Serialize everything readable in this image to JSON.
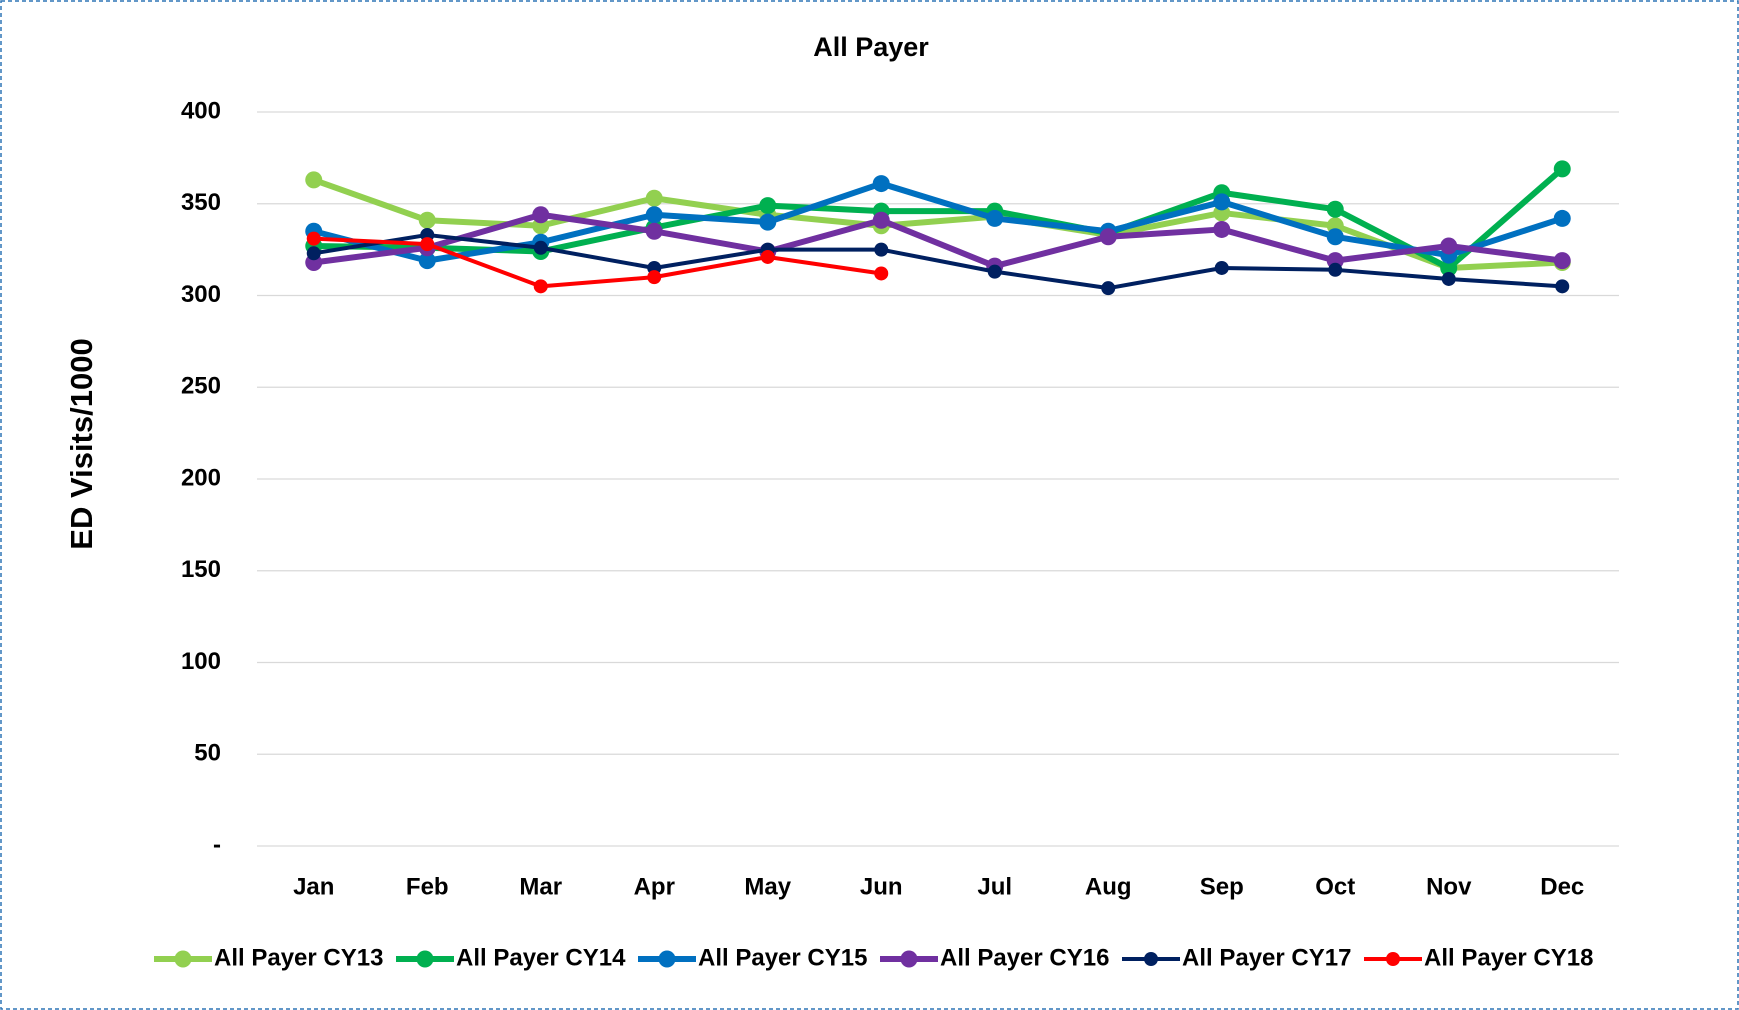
{
  "chart_data": {
    "type": "line",
    "title": "All Payer",
    "y_label": "ED Visits/1000",
    "categories": [
      "Jan",
      "Feb",
      "Mar",
      "Apr",
      "May",
      "Jun",
      "Jul",
      "Aug",
      "Sep",
      "Oct",
      "Nov",
      "Dec"
    ],
    "series": [
      {
        "name": "All Payer CY13",
        "color": "#92d050",
        "values": [
          363,
          341,
          338,
          353,
          344,
          338,
          343,
          333,
          345,
          338,
          315,
          318
        ]
      },
      {
        "name": "All Payer CY14",
        "color": "#00b050",
        "values": [
          327,
          326,
          324,
          337,
          349,
          346,
          346,
          334,
          356,
          347,
          315,
          369
        ]
      },
      {
        "name": "All Payer CY15",
        "color": "#0070c0",
        "values": [
          335,
          319,
          329,
          344,
          340,
          361,
          342,
          335,
          351,
          332,
          322,
          342
        ]
      },
      {
        "name": "All Payer CY16",
        "color": "#7030a0",
        "values": [
          318,
          326,
          344,
          335,
          324,
          341,
          316,
          332,
          336,
          319,
          327,
          319
        ]
      },
      {
        "name": "All Payer CY17",
        "color": "#002060",
        "values": [
          323,
          333,
          326,
          315,
          325,
          325,
          313,
          304,
          315,
          314,
          309,
          305
        ]
      },
      {
        "name": "All Payer CY18",
        "color": "#ff0000",
        "values": [
          331,
          328,
          305,
          310,
          321,
          312,
          null,
          null,
          null,
          null,
          null,
          null
        ]
      }
    ],
    "ylim": [
      0,
      400
    ],
    "yticks": [
      {
        "value": 0,
        "label": "-"
      },
      50,
      100,
      150,
      200,
      250,
      300,
      350,
      400
    ],
    "grid": true,
    "legend": "bottom"
  }
}
